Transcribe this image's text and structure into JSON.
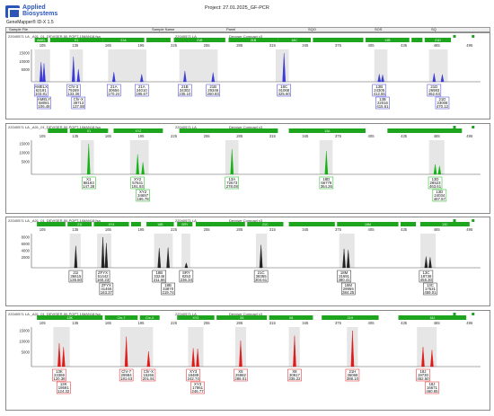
{
  "app": {
    "logo_text": "Applied\nBiosystems",
    "logo_sub": "GeneMapper® ID-X 1.5",
    "project_title": "Project: 27.01.2025_GF-PCR"
  },
  "columns": {
    "sample_file": "Sample File",
    "sample_name": "Sample Name",
    "panel": "Panel",
    "sqo": "SQO",
    "sos": "SOS",
    "sq": "SQ"
  },
  "x_ticks": [
    "105",
    "135",
    "165",
    "195",
    "225",
    "255",
    "285",
    "315",
    "345",
    "375",
    "405",
    "435",
    "465",
    "495"
  ],
  "colors": {
    "blue": "#3a3ad6",
    "green": "#14b214",
    "black": "#222222",
    "red": "#e01a1a",
    "bin": "#23a023",
    "binbar": "#1da51d",
    "shade": "#e6e6e6"
  },
  "panels": [
    {
      "file": "22040571 LA _A01_01_DEVISER-50-POPT-1IMAN18.fsa",
      "sample": "22040571 LA",
      "dye_set": "Devyser Compact v3",
      "color_key": "blue",
      "y_ticks": [
        "15000",
        "10000",
        "5000"
      ],
      "bins": [
        "AMEL",
        "X1",
        "21A",
        "",
        "21B",
        "21B",
        "18C",
        "",
        "13B",
        "",
        "21D"
      ],
      "peaks": [
        {
          "label": "AMELX",
          "val": "62191",
          "size": "103.81"
        },
        {
          "label": "AMELY",
          "val": "58081",
          "size": "106.48"
        },
        {
          "label": "Chr-3",
          "val": "79269",
          "size": "133.36"
        },
        {
          "label": "Chr-X",
          "val": "39713",
          "size": "137.88"
        },
        {
          "label": "21A",
          "val": "30656",
          "size": "170.24"
        },
        {
          "label": "21A",
          "val": "24010",
          "size": "195.67"
        },
        {
          "label": "21B",
          "val": "34302",
          "size": "235.10"
        },
        {
          "label": "21B",
          "val": "29346",
          "size": "260.83"
        },
        {
          "label": "18C",
          "val": "91068",
          "size": "325.60"
        },
        {
          "label": "13B",
          "val": "24305",
          "size": "412.55"
        },
        {
          "label": "13B",
          "val": "22016",
          "size": "415.61"
        },
        {
          "label": "21D",
          "val": "26983",
          "size": "462.63"
        },
        {
          "label": "21D",
          "val": "23008",
          "size": "470.12"
        }
      ]
    },
    {
      "file": "22040571 LA _A01_01_DEVISER-50-POPT-1IMAN18.fsa",
      "sample": "22040571 LA",
      "dye_set": "Devyser Compact v3",
      "color_key": "green",
      "y_ticks": [
        "15000",
        "10000",
        "5000"
      ],
      "bins": [
        "",
        "X1",
        "XY2",
        "",
        "13A",
        "",
        "18D",
        "",
        "13D"
      ],
      "peaks": [
        {
          "label": "X1",
          "val": "88193",
          "size": "147.28"
        },
        {
          "label": "XY2",
          "val": "57641",
          "size": "191.93"
        },
        {
          "label": "XY2",
          "val": "34697",
          "size": "196.78"
        },
        {
          "label": "13A",
          "val": "72673",
          "size": "278.08"
        },
        {
          "label": "18D",
          "val": "66779",
          "size": "364.26"
        },
        {
          "label": "13D",
          "val": "28523",
          "size": "463.61"
        },
        {
          "label": "13D",
          "val": "24034",
          "size": "467.57"
        }
      ]
    },
    {
      "file": "22040571 LA _A01_01_DEVISER-50-POPT-1IMAN18.fsa",
      "sample": "22040571 LA",
      "dye_set": "Devyser Compact v3",
      "color_key": "black",
      "y_ticks": [
        "8000",
        "6000",
        "4000",
        "2000"
      ],
      "bins": [
        "",
        "21I",
        "XY4",
        "",
        "18B",
        "SRY",
        "",
        "21C",
        "",
        "18M",
        "",
        "13C"
      ],
      "peaks": [
        {
          "label": "21I",
          "val": "36615",
          "size": "135.50"
        },
        {
          "label": "ZFYX",
          "val": "51442",
          "size": "160.23"
        },
        {
          "label": "ZFYX",
          "val": "41465",
          "size": "163.37"
        },
        {
          "label": "18B",
          "val": "33246",
          "size": "211.66"
        },
        {
          "label": "18B",
          "val": "33870",
          "size": "219.74"
        },
        {
          "label": "SRY",
          "val": "8253",
          "size": "236.34"
        },
        {
          "label": "21C",
          "val": "38365",
          "size": "304.61"
        },
        {
          "label": "18M",
          "val": "31691",
          "size": "380.41"
        },
        {
          "label": "18M",
          "val": "29955",
          "size": "384.25"
        },
        {
          "label": "13C",
          "val": "18738",
          "size": "455.30"
        },
        {
          "label": "13C",
          "val": "17531",
          "size": "459.01"
        }
      ]
    },
    {
      "file": "22040571 LA _A01_01_DEVISER-50-POPT-1IMAN18.fsa",
      "sample": "22040571 LA",
      "dye_set": "Devyser Compact v3",
      "color_key": "red",
      "y_ticks": [
        "15000",
        "10000",
        "5000"
      ],
      "bins": [
        "13K",
        "Chr-7",
        "Chr-X",
        "XY3",
        "X5",
        "X8",
        "21H",
        "18J"
      ],
      "peaks": [
        {
          "label": "13K",
          "val": "23369",
          "size": "120.38"
        },
        {
          "label": "13K",
          "val": "19591",
          "size": "124.32"
        },
        {
          "label": "Chr-7",
          "val": "29984",
          "size": "181.63"
        },
        {
          "label": "Chr-X",
          "val": "15266",
          "size": "201.91"
        },
        {
          "label": "XY3",
          "val": "18489",
          "size": "242.74"
        },
        {
          "label": "XY3",
          "val": "17861",
          "size": "246.77"
        },
        {
          "label": "X5",
          "val": "25982",
          "size": "286.01"
        },
        {
          "label": "X8",
          "val": "30917",
          "size": "335.22"
        },
        {
          "label": "21H",
          "val": "36068",
          "size": "388.10"
        },
        {
          "label": "18J",
          "val": "19730",
          "size": "452.50"
        },
        {
          "label": "18J",
          "val": "16671",
          "size": "460.65"
        }
      ]
    }
  ]
}
